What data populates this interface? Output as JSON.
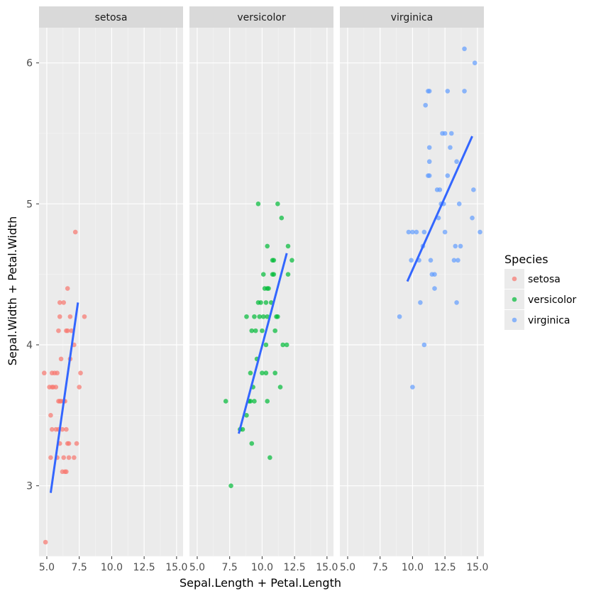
{
  "chart_data": {
    "type": "scatter",
    "subtype": "faceted scatter with linear fit per panel",
    "xlabel": "Sepal.Length + Petal.Length",
    "ylabel": "Sepal.Width + Petal.Width",
    "xlim": [
      4.4,
      15.5
    ],
    "ylim": [
      2.5,
      6.25
    ],
    "x_ticks": [
      5.0,
      7.5,
      10.0,
      12.5,
      15.0
    ],
    "x_tick_labels": [
      "5.0",
      "7.5",
      "10.0",
      "12.5",
      "15.0"
    ],
    "y_ticks": [
      3,
      4,
      5,
      6
    ],
    "y_tick_labels": [
      "3",
      "4",
      "5",
      "6"
    ],
    "legend": {
      "title": "Species",
      "position": "right",
      "entries": [
        {
          "label": "setosa",
          "color": "#F8766D"
        },
        {
          "label": "versicolor",
          "color": "#00BA38"
        },
        {
          "label": "virginica",
          "color": "#619CFF"
        }
      ]
    },
    "fit_line_color": "#3366FF",
    "panels": [
      {
        "name": "setosa",
        "color": "#F8766D",
        "points": [
          [
            4.8,
            3.8
          ],
          [
            4.9,
            2.6
          ],
          [
            5.2,
            3.7
          ],
          [
            5.3,
            3.5
          ],
          [
            5.3,
            3.2
          ],
          [
            5.4,
            3.7
          ],
          [
            5.4,
            3.4
          ],
          [
            5.4,
            3.8
          ],
          [
            5.5,
            3.7
          ],
          [
            5.6,
            3.8
          ],
          [
            5.7,
            3.7
          ],
          [
            5.7,
            3.4
          ],
          [
            5.8,
            3.8
          ],
          [
            5.8,
            3.2
          ],
          [
            5.9,
            4.1
          ],
          [
            5.9,
            3.6
          ],
          [
            5.9,
            3.4
          ],
          [
            6.0,
            4.3
          ],
          [
            6.0,
            4.2
          ],
          [
            6.0,
            3.6
          ],
          [
            6.0,
            3.3
          ],
          [
            6.1,
            3.9
          ],
          [
            6.1,
            3.6
          ],
          [
            6.2,
            3.4
          ],
          [
            6.2,
            3.1
          ],
          [
            6.3,
            4.3
          ],
          [
            6.3,
            3.6
          ],
          [
            6.3,
            3.2
          ],
          [
            6.4,
            3.6
          ],
          [
            6.4,
            3.1
          ],
          [
            6.5,
            4.1
          ],
          [
            6.5,
            3.4
          ],
          [
            6.5,
            3.1
          ],
          [
            6.6,
            4.4
          ],
          [
            6.6,
            4.1
          ],
          [
            6.6,
            3.3
          ],
          [
            6.7,
            3.3
          ],
          [
            6.7,
            3.2
          ],
          [
            6.8,
            4.2
          ],
          [
            6.8,
            3.9
          ],
          [
            6.9,
            4.1
          ],
          [
            7.1,
            4.0
          ],
          [
            7.1,
            3.2
          ],
          [
            7.2,
            4.8
          ],
          [
            7.3,
            3.3
          ],
          [
            7.5,
            3.7
          ],
          [
            7.6,
            3.8
          ],
          [
            7.9,
            4.2
          ]
        ],
        "fit": {
          "x": [
            5.3,
            7.4
          ],
          "y": [
            2.95,
            4.3
          ]
        }
      },
      {
        "name": "versicolor",
        "color": "#00BA38",
        "points": [
          [
            7.2,
            3.6
          ],
          [
            7.6,
            3.0
          ],
          [
            8.3,
            3.4
          ],
          [
            8.5,
            3.4
          ],
          [
            8.8,
            4.2
          ],
          [
            8.8,
            3.5
          ],
          [
            9.0,
            3.6
          ],
          [
            9.1,
            3.8
          ],
          [
            9.1,
            3.6
          ],
          [
            9.2,
            4.1
          ],
          [
            9.2,
            3.3
          ],
          [
            9.3,
            3.7
          ],
          [
            9.4,
            4.2
          ],
          [
            9.4,
            3.6
          ],
          [
            9.5,
            4.1
          ],
          [
            9.6,
            3.9
          ],
          [
            9.7,
            5.0
          ],
          [
            9.7,
            4.3
          ],
          [
            9.8,
            4.2
          ],
          [
            9.9,
            4.3
          ],
          [
            10.0,
            4.1
          ],
          [
            10.0,
            3.8
          ],
          [
            10.1,
            4.5
          ],
          [
            10.1,
            4.2
          ],
          [
            10.2,
            4.4
          ],
          [
            10.3,
            4.3
          ],
          [
            10.3,
            4.0
          ],
          [
            10.3,
            3.8
          ],
          [
            10.4,
            4.7
          ],
          [
            10.4,
            4.4
          ],
          [
            10.4,
            4.2
          ],
          [
            10.4,
            3.6
          ],
          [
            10.5,
            4.4
          ],
          [
            10.6,
            3.2
          ],
          [
            10.7,
            4.3
          ],
          [
            10.8,
            4.6
          ],
          [
            10.8,
            4.5
          ],
          [
            10.9,
            4.6
          ],
          [
            10.9,
            4.5
          ],
          [
            11.0,
            4.1
          ],
          [
            11.0,
            3.8
          ],
          [
            11.1,
            4.2
          ],
          [
            11.2,
            5.0
          ],
          [
            11.2,
            4.2
          ],
          [
            11.4,
            3.7
          ],
          [
            11.5,
            4.9
          ],
          [
            11.6,
            4.0
          ],
          [
            11.9,
            4.0
          ],
          [
            12.0,
            4.7
          ],
          [
            12.0,
            4.5
          ],
          [
            12.3,
            4.6
          ]
        ],
        "fit": {
          "x": [
            8.2,
            11.9
          ],
          "y": [
            3.37,
            4.65
          ]
        }
      },
      {
        "name": "virginica",
        "color": "#619CFF",
        "points": [
          [
            9.0,
            4.2
          ],
          [
            9.7,
            4.8
          ],
          [
            9.9,
            4.6
          ],
          [
            10.0,
            3.7
          ],
          [
            10.0,
            4.8
          ],
          [
            10.3,
            4.8
          ],
          [
            10.5,
            4.6
          ],
          [
            10.6,
            4.3
          ],
          [
            10.8,
            4.7
          ],
          [
            10.9,
            4.8
          ],
          [
            10.9,
            4.0
          ],
          [
            11.0,
            5.7
          ],
          [
            11.2,
            5.8
          ],
          [
            11.2,
            5.2
          ],
          [
            11.3,
            5.8
          ],
          [
            11.3,
            5.4
          ],
          [
            11.3,
            5.3
          ],
          [
            11.3,
            5.2
          ],
          [
            11.4,
            4.6
          ],
          [
            11.5,
            4.5
          ],
          [
            11.7,
            4.5
          ],
          [
            11.7,
            4.4
          ],
          [
            11.9,
            5.1
          ],
          [
            12.0,
            4.9
          ],
          [
            12.1,
            5.1
          ],
          [
            12.2,
            5.0
          ],
          [
            12.3,
            5.5
          ],
          [
            12.4,
            5.0
          ],
          [
            12.5,
            5.5
          ],
          [
            12.5,
            4.8
          ],
          [
            12.7,
            5.8
          ],
          [
            12.7,
            5.2
          ],
          [
            12.9,
            5.4
          ],
          [
            13.0,
            5.5
          ],
          [
            13.2,
            4.6
          ],
          [
            13.3,
            4.7
          ],
          [
            13.4,
            5.3
          ],
          [
            13.4,
            4.3
          ],
          [
            13.5,
            4.6
          ],
          [
            13.6,
            5.0
          ],
          [
            13.7,
            4.7
          ],
          [
            14.0,
            6.1
          ],
          [
            14.0,
            5.8
          ],
          [
            14.6,
            4.9
          ],
          [
            14.7,
            5.1
          ],
          [
            14.8,
            6.0
          ],
          [
            15.2,
            4.8
          ]
        ],
        "fit": {
          "x": [
            9.6,
            14.6
          ],
          "y": [
            4.45,
            5.48
          ]
        }
      }
    ]
  }
}
